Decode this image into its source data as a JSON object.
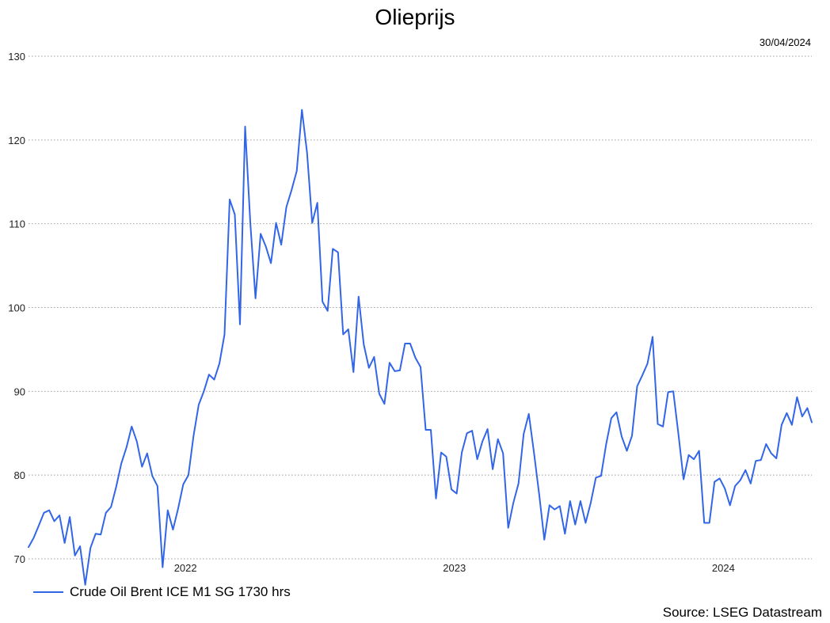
{
  "colors": {
    "series": "#3366e6",
    "grid": "#9e9e9e",
    "text": "#222222"
  },
  "chart_data": {
    "type": "line",
    "title": "Olieprijs",
    "date_label": "30/04/2024",
    "source": "Source: LSEG Datastream",
    "xlabel": "",
    "ylabel": "",
    "ylim": [
      70,
      130
    ],
    "yticks": [
      70,
      80,
      90,
      100,
      110,
      120,
      130
    ],
    "xlim": [
      "2021-06-02",
      "2024-04-30"
    ],
    "xticks": [
      {
        "label": "2022",
        "date": "2022-01-01"
      },
      {
        "label": "2023",
        "date": "2023-01-01"
      },
      {
        "label": "2024",
        "date": "2024-01-01"
      }
    ],
    "grid": true,
    "legend_position": "bottom-left",
    "series": [
      {
        "name": "Crude Oil Brent ICE M1 SG 1730 hrs",
        "x": [
          "2021-06-02",
          "2021-06-09",
          "2021-06-16",
          "2021-06-23",
          "2021-06-30",
          "2021-07-07",
          "2021-07-14",
          "2021-07-21",
          "2021-07-28",
          "2021-08-04",
          "2021-08-11",
          "2021-08-18",
          "2021-08-25",
          "2021-09-01",
          "2021-09-08",
          "2021-09-15",
          "2021-09-22",
          "2021-09-29",
          "2021-10-06",
          "2021-10-13",
          "2021-10-20",
          "2021-10-27",
          "2021-11-03",
          "2021-11-10",
          "2021-11-17",
          "2021-11-24",
          "2021-12-01",
          "2021-12-08",
          "2021-12-15",
          "2021-12-22",
          "2021-12-29",
          "2022-01-05",
          "2022-01-12",
          "2022-01-19",
          "2022-01-26",
          "2022-02-02",
          "2022-02-09",
          "2022-02-16",
          "2022-02-23",
          "2022-03-02",
          "2022-03-09",
          "2022-03-16",
          "2022-03-23",
          "2022-03-30",
          "2022-04-06",
          "2022-04-13",
          "2022-04-20",
          "2022-04-27",
          "2022-05-04",
          "2022-05-11",
          "2022-05-18",
          "2022-05-25",
          "2022-06-01",
          "2022-06-08",
          "2022-06-15",
          "2022-06-22",
          "2022-06-29",
          "2022-07-06",
          "2022-07-13",
          "2022-07-20",
          "2022-07-27",
          "2022-08-03",
          "2022-08-10",
          "2022-08-17",
          "2022-08-24",
          "2022-08-31",
          "2022-09-07",
          "2022-09-14",
          "2022-09-21",
          "2022-09-28",
          "2022-10-05",
          "2022-10-12",
          "2022-10-19",
          "2022-10-26",
          "2022-11-02",
          "2022-11-09",
          "2022-11-16",
          "2022-11-23",
          "2022-11-30",
          "2022-12-07",
          "2022-12-14",
          "2022-12-21",
          "2022-12-28",
          "2023-01-04",
          "2023-01-11",
          "2023-01-18",
          "2023-01-25",
          "2023-02-01",
          "2023-02-08",
          "2023-02-15",
          "2023-02-22",
          "2023-03-01",
          "2023-03-08",
          "2023-03-15",
          "2023-03-22",
          "2023-03-29",
          "2023-04-05",
          "2023-04-12",
          "2023-04-19",
          "2023-04-26",
          "2023-05-03",
          "2023-05-10",
          "2023-05-17",
          "2023-05-24",
          "2023-05-31",
          "2023-06-07",
          "2023-06-14",
          "2023-06-21",
          "2023-06-28",
          "2023-07-05",
          "2023-07-12",
          "2023-07-19",
          "2023-07-26",
          "2023-08-02",
          "2023-08-09",
          "2023-08-16",
          "2023-08-23",
          "2023-08-30",
          "2023-09-06",
          "2023-09-13",
          "2023-09-20",
          "2023-09-27",
          "2023-10-04",
          "2023-10-11",
          "2023-10-18",
          "2023-10-25",
          "2023-11-01",
          "2023-11-08",
          "2023-11-15",
          "2023-11-22",
          "2023-11-29",
          "2023-12-06",
          "2023-12-13",
          "2023-12-20",
          "2023-12-27",
          "2024-01-03",
          "2024-01-10",
          "2024-01-17",
          "2024-01-24",
          "2024-01-31",
          "2024-02-07",
          "2024-02-14",
          "2024-02-21",
          "2024-02-28",
          "2024-03-06",
          "2024-03-13",
          "2024-03-20",
          "2024-03-27",
          "2024-04-03",
          "2024-04-10",
          "2024-04-17",
          "2024-04-24",
          "2024-04-30"
        ],
        "y": [
          71.4,
          72.5,
          74.0,
          75.5,
          75.8,
          74.5,
          75.2,
          71.9,
          75.0,
          70.4,
          71.5,
          66.9,
          71.3,
          73.0,
          72.9,
          75.5,
          76.2,
          78.6,
          81.4,
          83.3,
          85.8,
          84.0,
          81.0,
          82.6,
          79.9,
          78.7,
          69.0,
          75.8,
          73.5,
          76.0,
          78.9,
          80.0,
          84.7,
          88.4,
          90.0,
          92.0,
          91.4,
          93.3,
          96.8,
          112.9,
          111.1,
          98.0,
          121.6,
          110.2,
          101.1,
          108.8,
          107.3,
          105.3,
          110.1,
          107.5,
          112.0,
          114.0,
          116.3,
          123.6,
          118.5,
          110.1,
          112.5,
          100.7,
          99.6,
          107.0,
          106.6,
          96.8,
          97.4,
          92.3,
          101.3,
          95.6,
          92.8,
          94.1,
          89.7,
          88.5,
          93.4,
          92.4,
          92.5,
          95.7,
          95.7,
          94.0,
          92.9,
          85.4,
          85.4,
          77.2,
          82.7,
          82.2,
          78.3,
          77.8,
          82.7,
          85.0,
          85.3,
          81.9,
          84.0,
          85.5,
          80.7,
          84.3,
          82.6,
          73.7,
          76.7,
          79.0,
          84.9,
          87.3,
          82.7,
          77.7,
          72.3,
          76.4,
          75.9,
          76.3,
          73.0,
          76.9,
          74.1,
          76.9,
          74.3,
          76.7,
          79.7,
          79.9,
          83.7,
          86.8,
          87.5,
          84.6,
          82.9,
          84.7,
          90.6,
          91.9,
          93.3,
          96.5,
          86.1,
          85.8,
          89.9,
          90.0,
          84.9,
          79.5,
          82.4,
          81.9,
          82.9,
          74.3,
          74.3,
          79.2,
          79.6,
          78.4,
          76.4,
          78.7,
          79.4,
          80.6,
          79.0,
          81.7,
          81.8,
          83.7,
          82.6,
          82.0,
          86.0,
          87.4,
          86.0,
          89.3,
          87.0,
          88.0,
          86.3
        ]
      }
    ]
  }
}
